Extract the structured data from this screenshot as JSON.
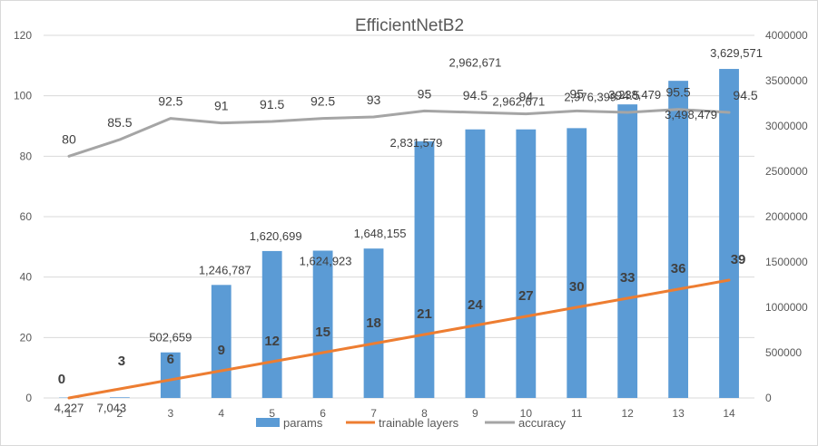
{
  "chart_data": {
    "type": "bar",
    "title": "EfficientNetB2",
    "categories": [
      "1",
      "2",
      "3",
      "4",
      "5",
      "6",
      "7",
      "8",
      "9",
      "10",
      "11",
      "12",
      "13",
      "14"
    ],
    "y_left_ticks": [
      "0",
      "20",
      "40",
      "60",
      "80",
      "100",
      "120"
    ],
    "y_right_ticks": [
      "0",
      "500000",
      "1000000",
      "1500000",
      "2000000",
      "2500000",
      "3000000",
      "3500000",
      "4000000"
    ],
    "ylim_left": [
      0,
      120
    ],
    "ylim_right": [
      0,
      4000000
    ],
    "series": [
      {
        "name": "params",
        "type": "bar",
        "axis": "right",
        "color": "#5b9bd5",
        "values": [
          4227,
          7043,
          502659,
          1246787,
          1620699,
          1624923,
          1648155,
          2831579,
          2962671,
          2962671,
          2976399,
          3238479,
          3498479,
          3629571
        ],
        "labels": [
          "4,227",
          "7,043",
          "502,659",
          "1,246,787",
          "1,620,699",
          "1,624,923",
          "1,648,155",
          "2,831,579",
          "2,962,671",
          "2,962,671",
          "2,976,399",
          "3,238,479",
          "3,498,479",
          "3,629,571"
        ]
      },
      {
        "name": "trainable layers",
        "type": "line",
        "axis": "left",
        "color": "#ed7d31",
        "values": [
          0,
          3,
          6,
          9,
          12,
          15,
          18,
          21,
          24,
          27,
          30,
          33,
          36,
          39
        ],
        "labels": [
          "0",
          "3",
          "6",
          "9",
          "12",
          "15",
          "18",
          "21",
          "24",
          "27",
          "30",
          "33",
          "36",
          "39"
        ]
      },
      {
        "name": "accuracy",
        "type": "line",
        "axis": "left",
        "color": "#a5a5a5",
        "values": [
          80,
          85.5,
          92.5,
          91,
          91.5,
          92.5,
          93,
          95,
          94.5,
          94,
          95,
          94.5,
          95.5,
          94.5
        ],
        "labels": [
          "80",
          "85.5",
          "92.5",
          "91",
          "91.5",
          "92.5",
          "93",
          "95",
          "94.5",
          "94",
          "95",
          "94.5",
          "95.5",
          "94.5"
        ]
      }
    ],
    "legend": [
      "params",
      "trainable layers",
      "accuracy"
    ],
    "legend_position": "bottom",
    "grid": true
  }
}
